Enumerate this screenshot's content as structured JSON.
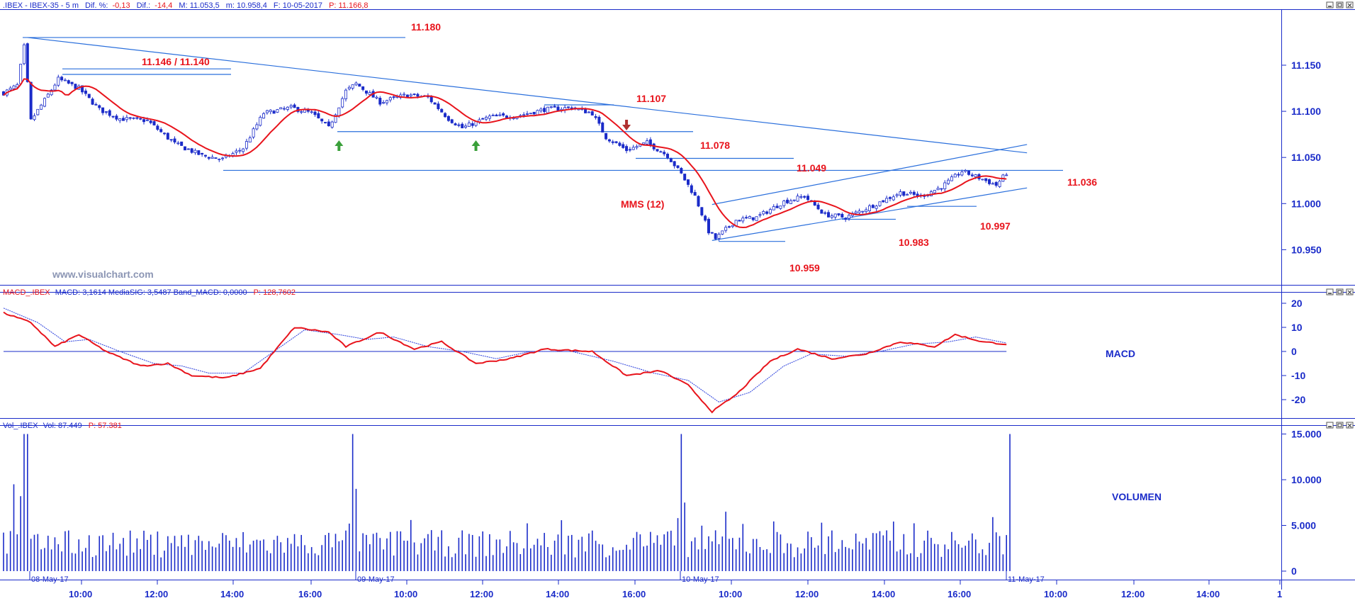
{
  "colors": {
    "candle": "#1a2bc9",
    "mms": "#e8141c",
    "trend": "#2a6fdc",
    "macd": "#e8141c",
    "signal": "#2a3fdc",
    "volume": "#1a2bc9",
    "axis": "#1a2bc9",
    "arrow_up": "#3aa03a",
    "arrow_down": "#b03030",
    "watermark": "#8c96b4"
  },
  "header": {
    "price": {
      "symbol": ".IBEX - IBEX-35 -  5 m",
      "dif_pct_label": "Dif. %:",
      "dif_pct": "-0,13",
      "dif_label": "Dif.:",
      "dif": "-14,4",
      "m": "M: 11.053,5",
      "mlow": "m: 10.958,4",
      "date": "F: 10-05-2017",
      "p": "P: 11.166,8"
    },
    "macd": {
      "name": "MACD_.IBEX",
      "values": "MACD: 3,1614  MediaSIG: 3,5487  Band_MACD: 0,0000",
      "p": "P: 128,7602"
    },
    "volume": {
      "name": "Vol_.IBEX",
      "vol": "Vol: 87.449",
      "p": "P: 57.381"
    }
  },
  "watermark": "www.visualchart.com",
  "pane_titles": {
    "macd": "MACD",
    "volume": "VOLUMEN"
  },
  "annotations": {
    "l11180": "11.180",
    "l11146": "11.146 / 11.140",
    "l11107": "11.107",
    "l11078": "11.078",
    "l11049": "11.049",
    "l11036": "11.036",
    "l10997": "10.997",
    "l10983": "10.983",
    "l10959": "10.959",
    "mms": "MMS (12)"
  },
  "chart_data": [
    {
      "type": "candlestick",
      "interval": "5 m",
      "y_ticks": [
        "11.150",
        "11.100",
        "11.050",
        "11.000",
        "10.950"
      ],
      "x_day_labels": [
        "08-May-17",
        "09-May-17",
        "10-May-17",
        "11-May-17"
      ],
      "x_time_labels": [
        "10:00",
        "12:00",
        "14:00",
        "16:00",
        "10:00",
        "12:00",
        "14:00",
        "16:00",
        "10:00",
        "12:00",
        "14:00",
        "16:00",
        "10:00",
        "12:00",
        "14:00",
        "1"
      ],
      "close_path": [
        {
          "bar": 0,
          "v": 11120
        },
        {
          "bar": 4,
          "v": 11128
        },
        {
          "bar": 6,
          "v": 11170
        },
        {
          "bar": 8,
          "v": 11090
        },
        {
          "bar": 12,
          "v": 11112
        },
        {
          "bar": 16,
          "v": 11135
        },
        {
          "bar": 22,
          "v": 11125
        },
        {
          "bar": 28,
          "v": 11102
        },
        {
          "bar": 34,
          "v": 11092
        },
        {
          "bar": 42,
          "v": 11090
        },
        {
          "bar": 50,
          "v": 11065
        },
        {
          "bar": 58,
          "v": 11052
        },
        {
          "bar": 64,
          "v": 11048
        },
        {
          "bar": 70,
          "v": 11060
        },
        {
          "bar": 76,
          "v": 11098
        },
        {
          "bar": 84,
          "v": 11104
        },
        {
          "bar": 90,
          "v": 11098
        },
        {
          "bar": 95,
          "v": 11082
        },
        {
          "bar": 100,
          "v": 11122
        },
        {
          "bar": 103,
          "v": 11130
        },
        {
          "bar": 110,
          "v": 11110
        },
        {
          "bar": 118,
          "v": 11118
        },
        {
          "bar": 124,
          "v": 11115
        },
        {
          "bar": 130,
          "v": 11092
        },
        {
          "bar": 134,
          "v": 11082
        },
        {
          "bar": 142,
          "v": 11094
        },
        {
          "bar": 150,
          "v": 11095
        },
        {
          "bar": 158,
          "v": 11102
        },
        {
          "bar": 166,
          "v": 11104
        },
        {
          "bar": 172,
          "v": 11098
        },
        {
          "bar": 176,
          "v": 11072
        },
        {
          "bar": 182,
          "v": 11058
        },
        {
          "bar": 188,
          "v": 11066
        },
        {
          "bar": 194,
          "v": 11052
        },
        {
          "bar": 198,
          "v": 11032
        },
        {
          "bar": 202,
          "v": 11008
        },
        {
          "bar": 206,
          "v": 10970
        },
        {
          "bar": 208,
          "v": 10962
        },
        {
          "bar": 214,
          "v": 10982
        },
        {
          "bar": 220,
          "v": 10985
        },
        {
          "bar": 228,
          "v": 11002
        },
        {
          "bar": 234,
          "v": 11008
        },
        {
          "bar": 240,
          "v": 10988
        },
        {
          "bar": 246,
          "v": 10985
        },
        {
          "bar": 254,
          "v": 10998
        },
        {
          "bar": 262,
          "v": 11012
        },
        {
          "bar": 268,
          "v": 11008
        },
        {
          "bar": 274,
          "v": 11018
        },
        {
          "bar": 280,
          "v": 11035
        },
        {
          "bar": 285,
          "v": 11028
        },
        {
          "bar": 290,
          "v": 11020
        },
        {
          "bar": 293,
          "v": 11033
        }
      ],
      "mms_period": 12,
      "horizontal_levels": [
        11180,
        11146,
        11140,
        11107,
        11078,
        11049,
        11036,
        10997,
        10983,
        10959
      ],
      "trendlines": [
        {
          "from": {
            "bar": 7,
            "v": 11180
          },
          "to": {
            "bar": 299,
            "v": 11055
          }
        },
        {
          "from": {
            "bar": 207,
            "v": 10999
          },
          "to": {
            "bar": 299,
            "v": 11064
          }
        },
        {
          "from": {
            "bar": 207,
            "v": 10960
          },
          "to": {
            "bar": 299,
            "v": 11017
          }
        }
      ],
      "support_arrows_bar": [
        98,
        138
      ],
      "resistance_arrow_bar": [
        182
      ]
    },
    {
      "type": "line",
      "name": "MACD",
      "y_ticks": [
        "20",
        "10",
        "0",
        "-10",
        "-20"
      ],
      "macd_path": [
        {
          "bar": 0,
          "v": 16
        },
        {
          "bar": 8,
          "v": 12
        },
        {
          "bar": 15,
          "v": 2
        },
        {
          "bar": 22,
          "v": 7
        },
        {
          "bar": 30,
          "v": 0
        },
        {
          "bar": 40,
          "v": -6
        },
        {
          "bar": 48,
          "v": -5
        },
        {
          "bar": 55,
          "v": -10
        },
        {
          "bar": 65,
          "v": -11
        },
        {
          "bar": 75,
          "v": -7
        },
        {
          "bar": 85,
          "v": 10
        },
        {
          "bar": 95,
          "v": 8
        },
        {
          "bar": 100,
          "v": 2
        },
        {
          "bar": 110,
          "v": 8
        },
        {
          "bar": 120,
          "v": 1
        },
        {
          "bar": 128,
          "v": 4
        },
        {
          "bar": 138,
          "v": -5
        },
        {
          "bar": 148,
          "v": -3
        },
        {
          "bar": 158,
          "v": 1
        },
        {
          "bar": 172,
          "v": 0
        },
        {
          "bar": 182,
          "v": -10
        },
        {
          "bar": 192,
          "v": -8
        },
        {
          "bar": 200,
          "v": -14
        },
        {
          "bar": 207,
          "v": -25
        },
        {
          "bar": 214,
          "v": -18
        },
        {
          "bar": 224,
          "v": -4
        },
        {
          "bar": 232,
          "v": 1
        },
        {
          "bar": 242,
          "v": -3
        },
        {
          "bar": 252,
          "v": -1
        },
        {
          "bar": 262,
          "v": 4
        },
        {
          "bar": 272,
          "v": 2
        },
        {
          "bar": 278,
          "v": 7
        },
        {
          "bar": 286,
          "v": 4
        },
        {
          "bar": 293,
          "v": 3
        }
      ],
      "signal_path": [
        {
          "bar": 0,
          "v": 18
        },
        {
          "bar": 10,
          "v": 12
        },
        {
          "bar": 18,
          "v": 4
        },
        {
          "bar": 25,
          "v": 5
        },
        {
          "bar": 34,
          "v": 0
        },
        {
          "bar": 44,
          "v": -5
        },
        {
          "bar": 52,
          "v": -6
        },
        {
          "bar": 60,
          "v": -9
        },
        {
          "bar": 70,
          "v": -9
        },
        {
          "bar": 80,
          "v": 1
        },
        {
          "bar": 88,
          "v": 9
        },
        {
          "bar": 98,
          "v": 7
        },
        {
          "bar": 106,
          "v": 5
        },
        {
          "bar": 114,
          "v": 6
        },
        {
          "bar": 124,
          "v": 2
        },
        {
          "bar": 134,
          "v": 0
        },
        {
          "bar": 144,
          "v": -3
        },
        {
          "bar": 154,
          "v": 0
        },
        {
          "bar": 166,
          "v": 0
        },
        {
          "bar": 178,
          "v": -4
        },
        {
          "bar": 190,
          "v": -9
        },
        {
          "bar": 200,
          "v": -12
        },
        {
          "bar": 209,
          "v": -21
        },
        {
          "bar": 218,
          "v": -17
        },
        {
          "bar": 228,
          "v": -6
        },
        {
          "bar": 236,
          "v": -1
        },
        {
          "bar": 246,
          "v": -2
        },
        {
          "bar": 256,
          "v": 0
        },
        {
          "bar": 266,
          "v": 3
        },
        {
          "bar": 276,
          "v": 4
        },
        {
          "bar": 284,
          "v": 6
        },
        {
          "bar": 293,
          "v": 3.5
        }
      ]
    },
    {
      "type": "bar",
      "name": "Volumen",
      "y_ticks": [
        "15.000",
        "10.000",
        "5.000",
        "0"
      ],
      "spikes": [
        {
          "bar": 6,
          "v": 15000
        },
        {
          "bar": 7,
          "v": 15000
        },
        {
          "bar": 102,
          "v": 15000
        },
        {
          "bar": 198,
          "v": 15000
        },
        {
          "bar": 294,
          "v": 15000
        }
      ],
      "notable": [
        {
          "bar": 3,
          "v": 9500
        },
        {
          "bar": 5,
          "v": 8200
        },
        {
          "bar": 103,
          "v": 9000
        },
        {
          "bar": 101,
          "v": 5200
        },
        {
          "bar": 199,
          "v": 7500
        },
        {
          "bar": 197,
          "v": 5800
        },
        {
          "bar": 211,
          "v": 6500
        }
      ],
      "typical_range": [
        1500,
        4500
      ]
    }
  ]
}
